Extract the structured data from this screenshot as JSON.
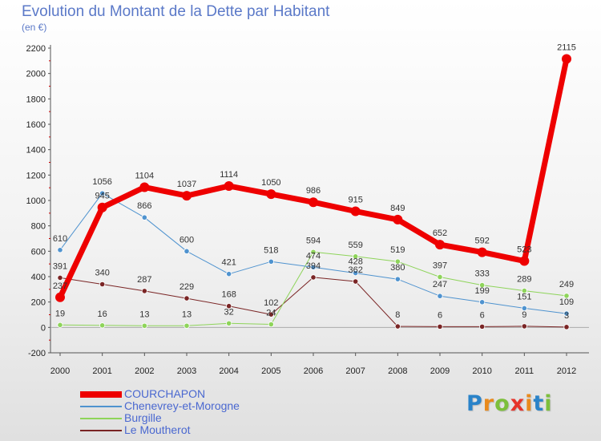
{
  "title": "Evolution du Montant de la Dette par Habitant",
  "subtitle": "(en €)",
  "logo": {
    "text": "Proxiti",
    "colors": [
      "#2a83c9",
      "#e98a1c",
      "#7cbf3b",
      "#e6332a",
      "#e98a1c",
      "#2a83c9",
      "#7cbf3b"
    ]
  },
  "chart_data": {
    "type": "line",
    "x": [
      "2000",
      "2001",
      "2002",
      "2003",
      "2004",
      "2005",
      "2006",
      "2007",
      "2008",
      "2009",
      "2010",
      "2011",
      "2012"
    ],
    "ylim": [
      -200,
      2200
    ],
    "yticks": [
      "-200",
      "0",
      "200",
      "400",
      "600",
      "800",
      "1000",
      "1200",
      "1400",
      "1600",
      "1800",
      "2000",
      "2200"
    ],
    "grid": false,
    "legend": "bottom-left",
    "series": [
      {
        "name": "COURCHAPON",
        "color": "#ee0000",
        "width": 7,
        "values": [
          237,
          945,
          1104,
          1037,
          1114,
          1050,
          986,
          915,
          849,
          652,
          592,
          523,
          2115
        ],
        "labels": [
          "237",
          "945",
          "1104",
          "1037",
          "1114",
          "1050",
          "986",
          "915",
          "849",
          "652",
          "592",
          "523",
          "2115"
        ]
      },
      {
        "name": "Chenevrey-et-Morogne",
        "color": "#4f93cf",
        "width": 1,
        "values": [
          610,
          1056,
          866,
          600,
          421,
          518,
          474,
          428,
          380,
          247,
          199,
          151,
          109
        ],
        "labels": [
          "610",
          "1056",
          "866",
          "600",
          "421",
          "518",
          "474",
          "428",
          "380",
          "247",
          "199",
          "151",
          "109"
        ]
      },
      {
        "name": "Burgille",
        "color": "#8ed45a",
        "width": 1,
        "values": [
          19,
          16,
          13,
          13,
          32,
          24,
          594,
          559,
          519,
          397,
          333,
          289,
          249
        ],
        "labels": [
          "19",
          "16",
          "13",
          "13",
          "32",
          "24",
          "594",
          "559",
          "519",
          "397",
          "333",
          "289",
          "249"
        ]
      },
      {
        "name": "Le Moutherot",
        "color": "#7a2525",
        "width": 1,
        "values": [
          391,
          340,
          287,
          229,
          168,
          102,
          394,
          362,
          8,
          6,
          6,
          9,
          3
        ],
        "labels": [
          "391",
          "340",
          "287",
          "229",
          "168",
          "102",
          "394",
          "362",
          "8",
          "6",
          "6",
          "9",
          "3"
        ]
      }
    ]
  }
}
